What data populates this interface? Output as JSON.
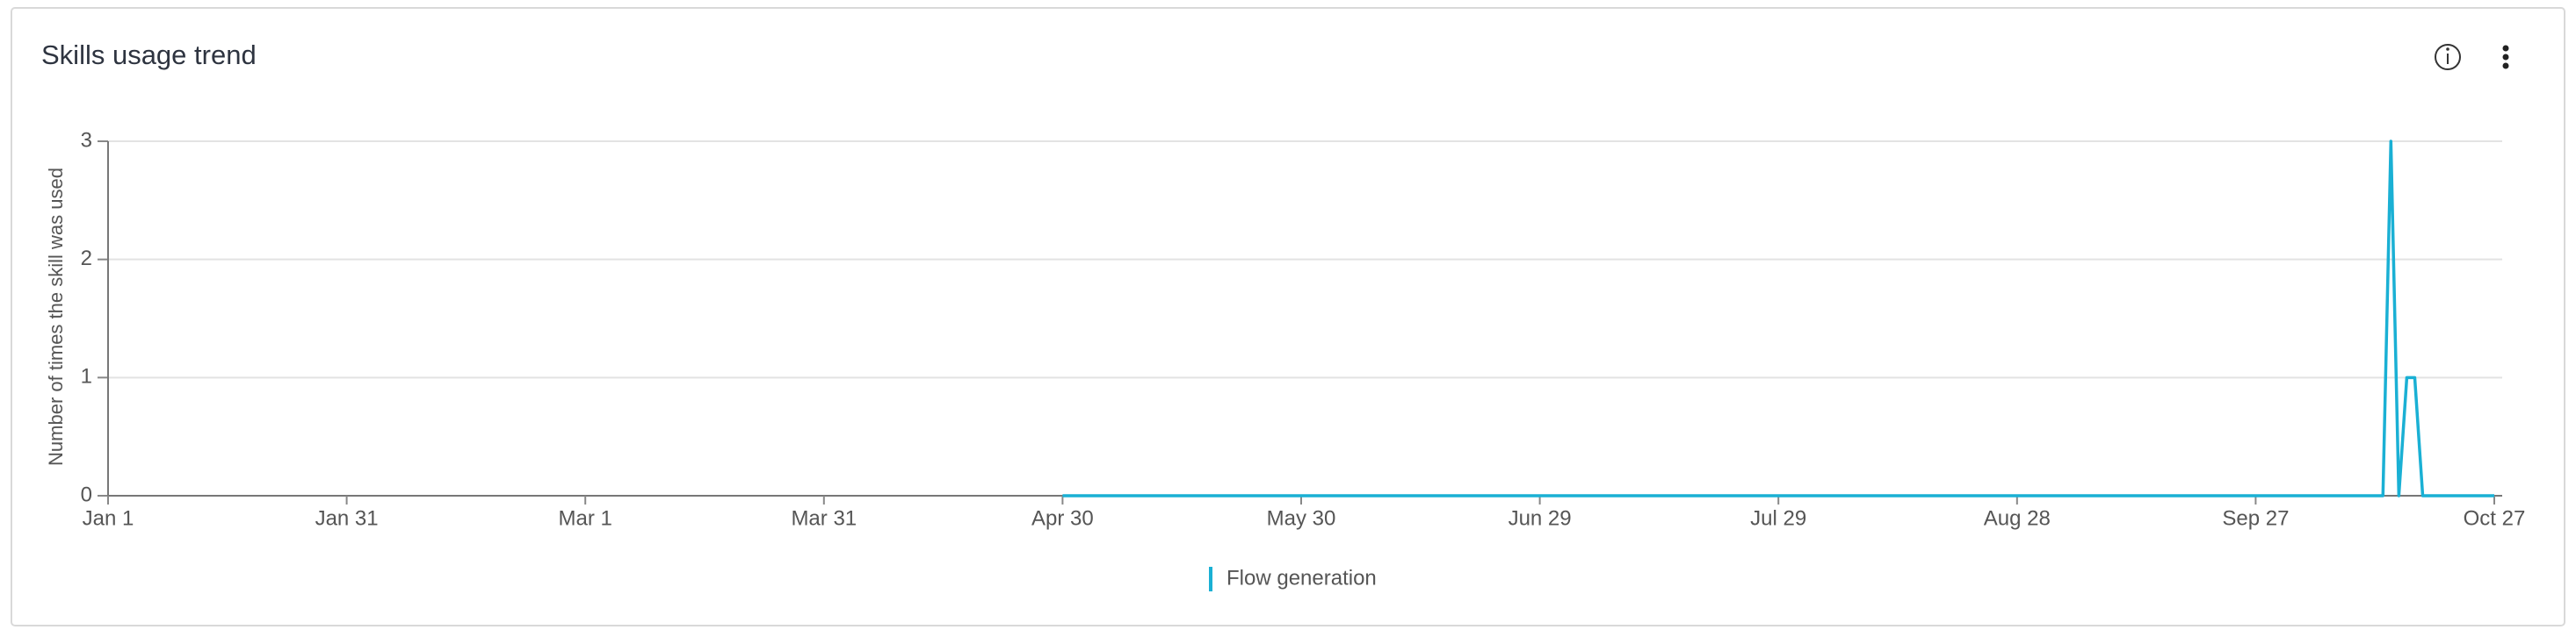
{
  "chart_data": {
    "type": "line",
    "title": "Skills usage trend",
    "y_label": "Number of times the skill was used",
    "x": [
      "Apr 30",
      "Oct 13",
      "Oct 14",
      "Oct 15",
      "Oct 16",
      "Oct 17",
      "Oct 18",
      "Oct 27"
    ],
    "series": [
      {
        "name": "Flow generation",
        "color": "#1ab0d4",
        "values": [
          0,
          0,
          3,
          0,
          1,
          1,
          0,
          0
        ]
      }
    ],
    "xlim": [
      "Jan 1",
      "Oct 27"
    ],
    "xticks": [
      "Jan 1",
      "Jan 31",
      "Mar 1",
      "Mar 31",
      "Apr 30",
      "May 30",
      "Jun 29",
      "Jul 29",
      "Aug 28",
      "Sep 27",
      "Oct 27"
    ],
    "ylim": [
      0,
      3
    ],
    "yticks": [
      0,
      1,
      2,
      3
    ],
    "grid": true
  }
}
